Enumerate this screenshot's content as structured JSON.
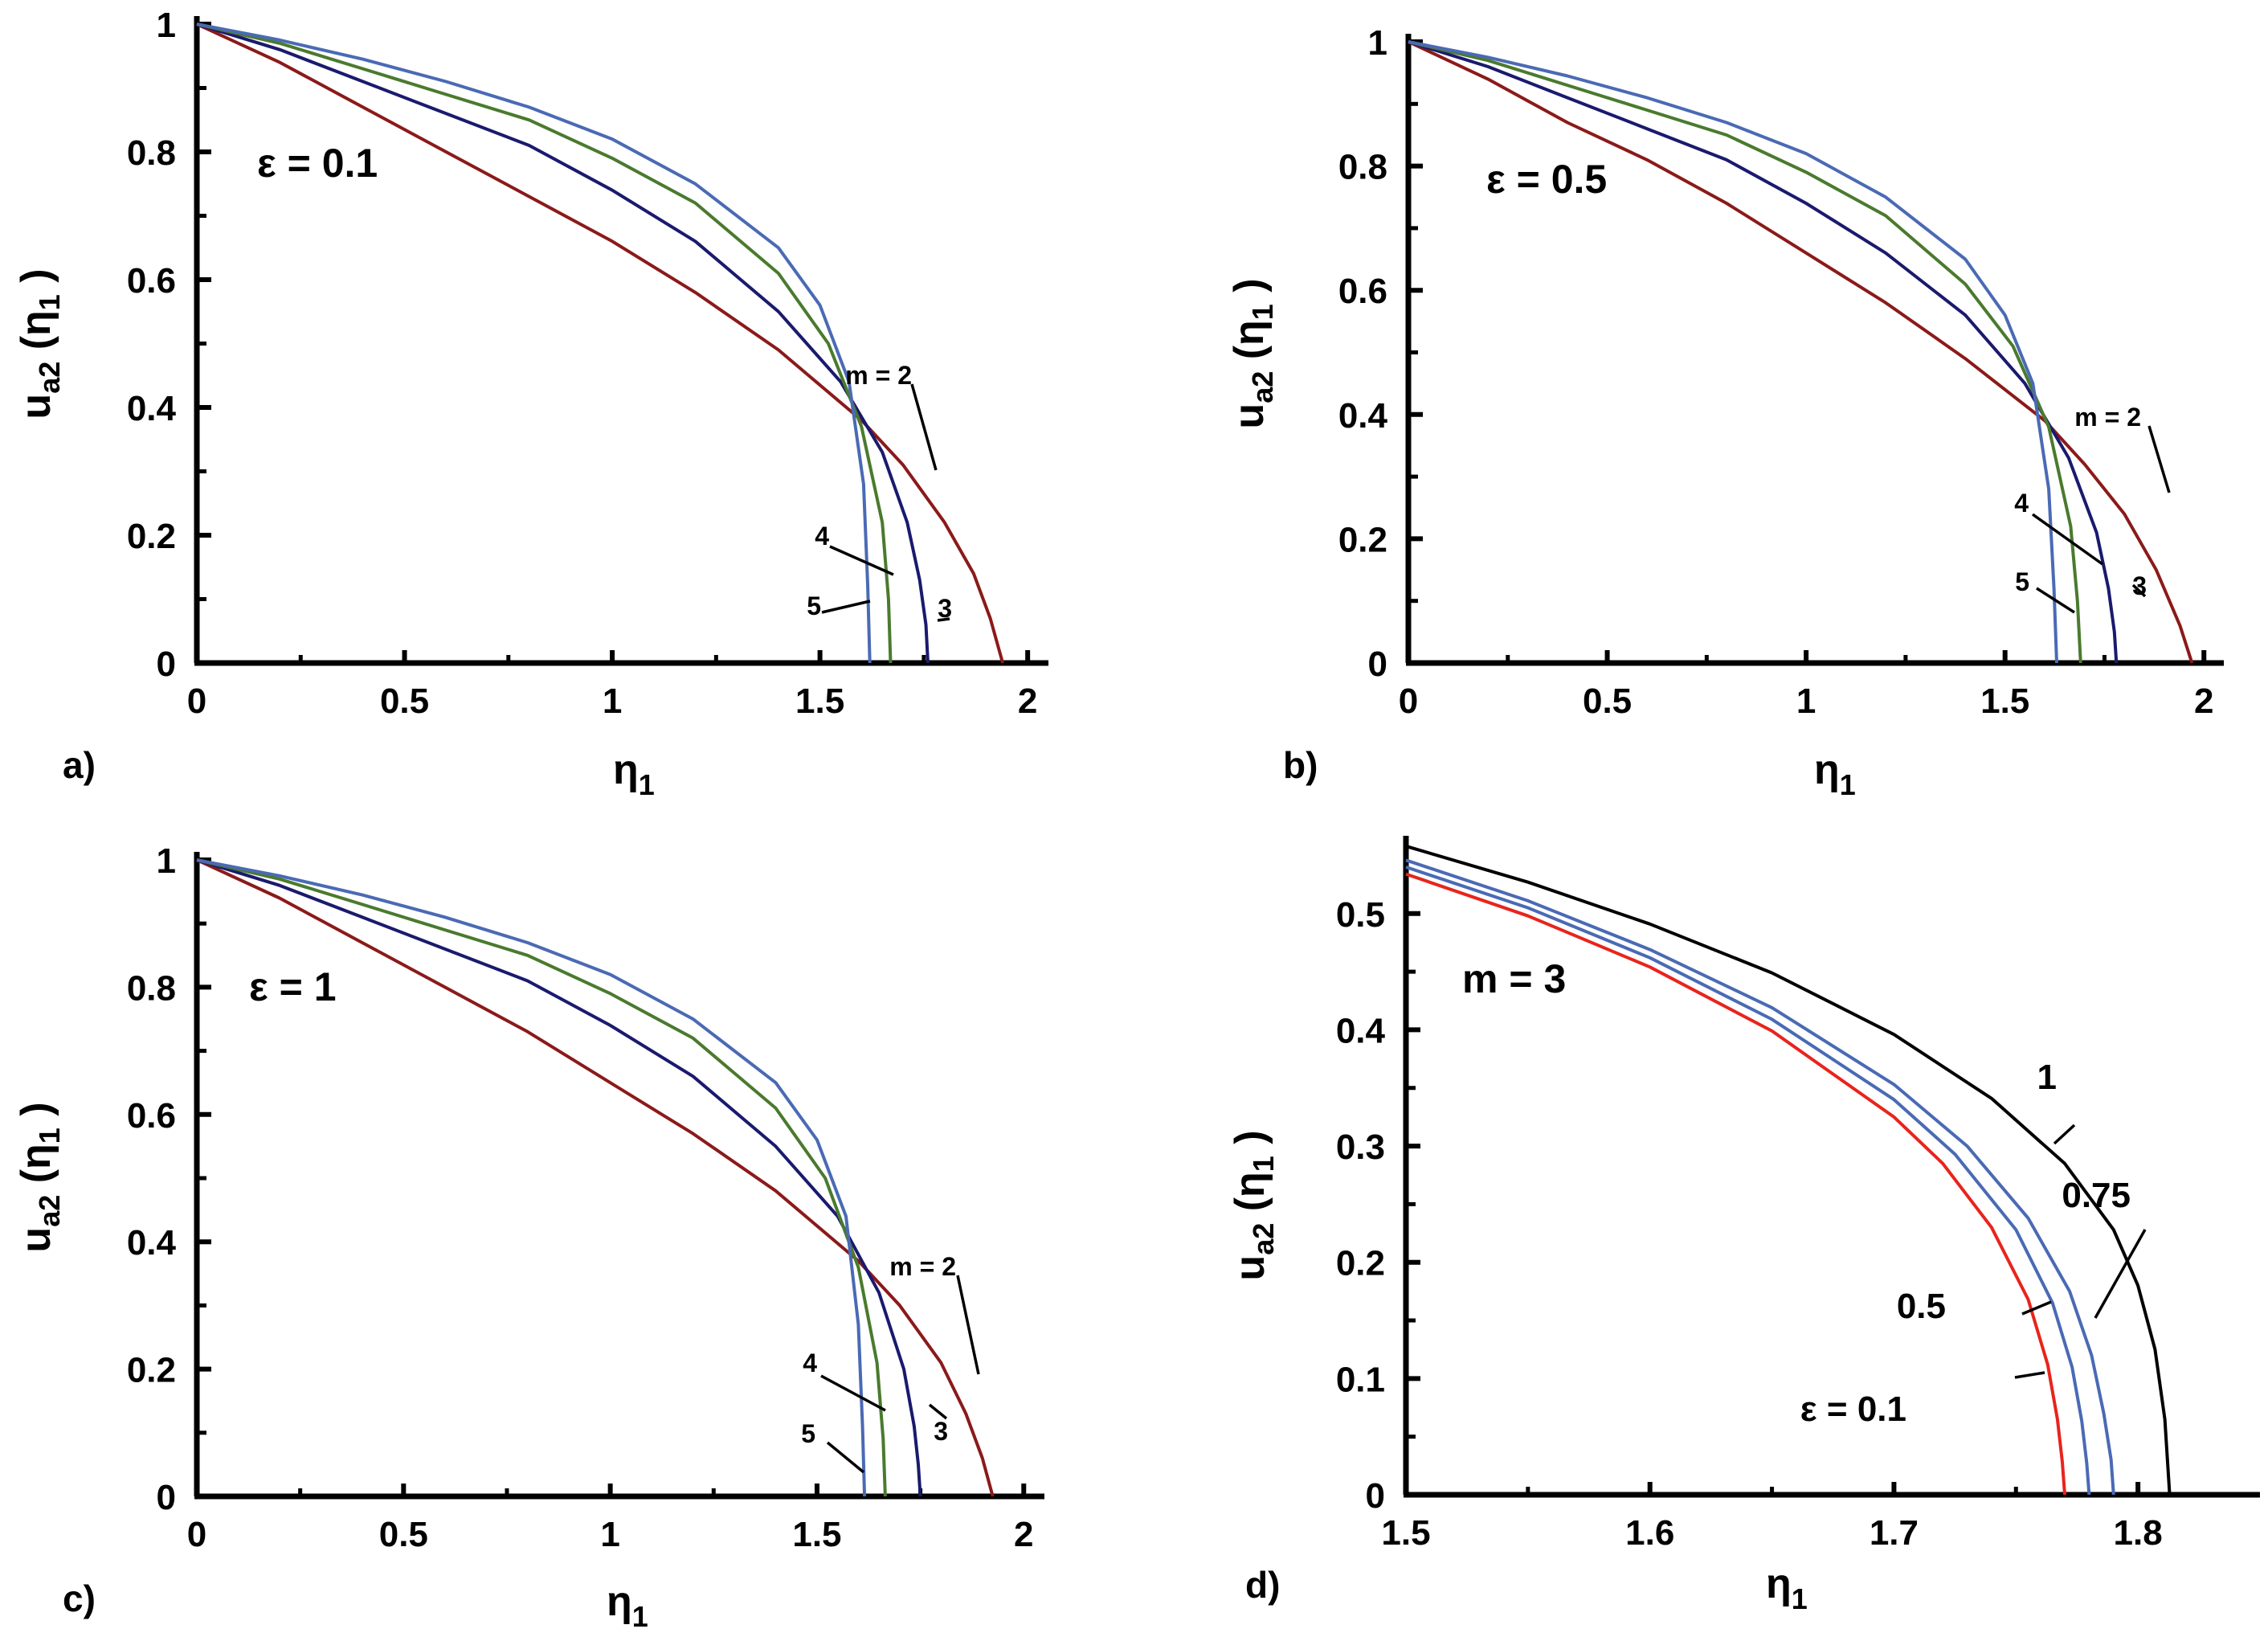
{
  "chart_data": [
    {
      "panel": "a)",
      "type": "line",
      "annotation": "ε = 0.1",
      "xlabel": "η1",
      "ylabel": "ua2(η1)",
      "xlim": [
        0,
        2.05
      ],
      "ylim": [
        0,
        1
      ],
      "xticks": [
        "0",
        "0.5",
        "1",
        "1.5",
        "2"
      ],
      "yticks": [
        "0",
        "0.2",
        "0.4",
        "0.6",
        "0.8",
        "1"
      ],
      "series": [
        {
          "name": "m = 2",
          "color": "#8b1a1a",
          "x": [
            0,
            0.2,
            0.4,
            0.6,
            0.8,
            1.0,
            1.2,
            1.4,
            1.6,
            1.7,
            1.8,
            1.87,
            1.91,
            1.94
          ],
          "y": [
            1,
            0.94,
            0.87,
            0.8,
            0.73,
            0.66,
            0.58,
            0.49,
            0.38,
            0.31,
            0.22,
            0.14,
            0.07,
            0
          ]
        },
        {
          "name": "3",
          "color": "#1a1a6e",
          "x": [
            0,
            0.2,
            0.4,
            0.6,
            0.8,
            1.0,
            1.2,
            1.4,
            1.55,
            1.65,
            1.71,
            1.74,
            1.755,
            1.76
          ],
          "y": [
            1,
            0.96,
            0.91,
            0.86,
            0.81,
            0.74,
            0.66,
            0.55,
            0.44,
            0.33,
            0.22,
            0.13,
            0.06,
            0
          ]
        },
        {
          "name": "4",
          "color": "#4a7a2e",
          "x": [
            0,
            0.2,
            0.4,
            0.6,
            0.8,
            1.0,
            1.2,
            1.4,
            1.52,
            1.6,
            1.65,
            1.665,
            1.67
          ],
          "y": [
            1,
            0.97,
            0.93,
            0.89,
            0.85,
            0.79,
            0.72,
            0.61,
            0.5,
            0.37,
            0.22,
            0.1,
            0
          ]
        },
        {
          "name": "5",
          "color": "#4a6ab4",
          "x": [
            0,
            0.2,
            0.4,
            0.6,
            0.8,
            1.0,
            1.2,
            1.4,
            1.5,
            1.57,
            1.605,
            1.615,
            1.62
          ],
          "y": [
            1,
            0.975,
            0.945,
            0.91,
            0.87,
            0.82,
            0.75,
            0.65,
            0.56,
            0.44,
            0.28,
            0.12,
            0
          ]
        }
      ],
      "curve_labels": [
        "m = 2",
        "3",
        "4",
        "5"
      ]
    },
    {
      "panel": "b)",
      "type": "line",
      "annotation": "ε = 0.5",
      "xlabel": "η1",
      "ylabel": "ua2(η1)",
      "xlim": [
        0,
        2.05
      ],
      "ylim": [
        0,
        1
      ],
      "xticks": [
        "0",
        "0.5",
        "1",
        "1.5",
        "2"
      ],
      "yticks": [
        "0",
        "0.2",
        "0.4",
        "0.6",
        "0.8",
        "1"
      ],
      "series": [
        {
          "name": "m = 2",
          "color": "#8b1a1a",
          "x": [
            0,
            0.2,
            0.4,
            0.6,
            0.8,
            1.0,
            1.2,
            1.4,
            1.6,
            1.7,
            1.8,
            1.88,
            1.94,
            1.97
          ],
          "y": [
            1,
            0.94,
            0.87,
            0.81,
            0.74,
            0.66,
            0.58,
            0.49,
            0.39,
            0.32,
            0.24,
            0.15,
            0.06,
            0
          ]
        },
        {
          "name": "3",
          "color": "#1a1a6e",
          "x": [
            0,
            0.2,
            0.4,
            0.6,
            0.8,
            1.0,
            1.2,
            1.4,
            1.55,
            1.66,
            1.73,
            1.76,
            1.775,
            1.78
          ],
          "y": [
            1,
            0.96,
            0.91,
            0.86,
            0.81,
            0.74,
            0.66,
            0.56,
            0.45,
            0.33,
            0.21,
            0.12,
            0.05,
            0
          ]
        },
        {
          "name": "4",
          "color": "#4a7a2e",
          "x": [
            0,
            0.2,
            0.4,
            0.6,
            0.8,
            1.0,
            1.2,
            1.4,
            1.52,
            1.61,
            1.665,
            1.682,
            1.69
          ],
          "y": [
            1,
            0.97,
            0.93,
            0.89,
            0.85,
            0.79,
            0.72,
            0.61,
            0.51,
            0.38,
            0.22,
            0.1,
            0
          ]
        },
        {
          "name": "5",
          "color": "#4a6ab4",
          "x": [
            0,
            0.2,
            0.4,
            0.6,
            0.8,
            1.0,
            1.2,
            1.4,
            1.5,
            1.57,
            1.61,
            1.623,
            1.63
          ],
          "y": [
            1,
            0.975,
            0.945,
            0.91,
            0.87,
            0.82,
            0.75,
            0.65,
            0.56,
            0.45,
            0.28,
            0.12,
            0
          ]
        }
      ],
      "curve_labels": [
        "m = 2",
        "3",
        "4",
        "5"
      ]
    },
    {
      "panel": "c)",
      "type": "line",
      "annotation": "ε = 1",
      "xlabel": "η1",
      "ylabel": "ua2(η1)",
      "xlim": [
        0,
        2.05
      ],
      "ylim": [
        0,
        1
      ],
      "xticks": [
        "0",
        "0.5",
        "1",
        "1.5",
        "2"
      ],
      "yticks": [
        "0",
        "0.2",
        "0.4",
        "0.6",
        "0.8",
        "1"
      ],
      "series": [
        {
          "name": "m = 2",
          "color": "#8b1a1a",
          "x": [
            0,
            0.2,
            0.4,
            0.6,
            0.8,
            1.0,
            1.2,
            1.4,
            1.6,
            1.7,
            1.8,
            1.86,
            1.9,
            1.925
          ],
          "y": [
            1,
            0.94,
            0.87,
            0.8,
            0.73,
            0.65,
            0.57,
            0.48,
            0.37,
            0.3,
            0.21,
            0.13,
            0.06,
            0
          ]
        },
        {
          "name": "3",
          "color": "#1a1a6e",
          "x": [
            0,
            0.2,
            0.4,
            0.6,
            0.8,
            1.0,
            1.2,
            1.4,
            1.55,
            1.65,
            1.71,
            1.735,
            1.745,
            1.75
          ],
          "y": [
            1,
            0.96,
            0.91,
            0.86,
            0.81,
            0.74,
            0.66,
            0.55,
            0.44,
            0.32,
            0.2,
            0.11,
            0.05,
            0
          ]
        },
        {
          "name": "4",
          "color": "#4a7a2e",
          "x": [
            0,
            0.2,
            0.4,
            0.6,
            0.8,
            1.0,
            1.2,
            1.4,
            1.52,
            1.6,
            1.645,
            1.66,
            1.665
          ],
          "y": [
            1,
            0.97,
            0.93,
            0.89,
            0.85,
            0.79,
            0.72,
            0.61,
            0.5,
            0.36,
            0.21,
            0.09,
            0
          ]
        },
        {
          "name": "5",
          "color": "#4a6ab4",
          "x": [
            0,
            0.2,
            0.4,
            0.6,
            0.8,
            1.0,
            1.2,
            1.4,
            1.5,
            1.57,
            1.6,
            1.61,
            1.615
          ],
          "y": [
            1,
            0.975,
            0.945,
            0.91,
            0.87,
            0.82,
            0.75,
            0.65,
            0.56,
            0.44,
            0.27,
            0.11,
            0
          ]
        }
      ],
      "curve_labels": [
        "m = 2",
        "3",
        "4",
        "5"
      ]
    },
    {
      "panel": "d)",
      "type": "line",
      "annotation": "m = 3",
      "xlabel": "η1",
      "ylabel": "ua2(η1)",
      "xlim": [
        1.5,
        1.85
      ],
      "ylim": [
        0,
        0.56
      ],
      "xticks": [
        "1.5",
        "1.6",
        "1.7",
        "1.8"
      ],
      "yticks": [
        "0",
        "0.1",
        "0.2",
        "0.3",
        "0.4",
        "0.5"
      ],
      "series": [
        {
          "name": "1",
          "color": "#000000",
          "x": [
            1.5,
            1.55,
            1.6,
            1.65,
            1.7,
            1.74,
            1.77,
            1.79,
            1.8,
            1.807,
            1.811,
            1.813
          ],
          "y": [
            0.558,
            0.527,
            0.491,
            0.449,
            0.396,
            0.341,
            0.285,
            0.228,
            0.18,
            0.125,
            0.065,
            0
          ]
        },
        {
          "name": "0.75",
          "color": "#4a6ab4",
          "x": [
            1.5,
            1.55,
            1.6,
            1.65,
            1.7,
            1.73,
            1.755,
            1.772,
            1.781,
            1.786,
            1.789,
            1.79
          ],
          "y": [
            0.546,
            0.511,
            0.469,
            0.419,
            0.353,
            0.3,
            0.238,
            0.175,
            0.12,
            0.07,
            0.03,
            0
          ]
        },
        {
          "name": "0.5",
          "color": "#4a6ab4",
          "x": [
            1.5,
            1.55,
            1.6,
            1.65,
            1.7,
            1.725,
            1.75,
            1.765,
            1.773,
            1.777,
            1.779,
            1.78
          ],
          "y": [
            0.54,
            0.505,
            0.462,
            0.409,
            0.34,
            0.293,
            0.228,
            0.165,
            0.11,
            0.063,
            0.027,
            0
          ]
        },
        {
          "name": "ε = 0.1",
          "color": "#e8241c",
          "x": [
            1.5,
            1.55,
            1.6,
            1.65,
            1.7,
            1.72,
            1.74,
            1.755,
            1.763,
            1.767,
            1.769,
            1.77
          ],
          "y": [
            0.534,
            0.498,
            0.454,
            0.399,
            0.325,
            0.285,
            0.23,
            0.168,
            0.112,
            0.065,
            0.028,
            0
          ]
        }
      ],
      "curve_labels": [
        "1",
        "0.75",
        "0.5",
        "ε = 0.1"
      ]
    }
  ]
}
